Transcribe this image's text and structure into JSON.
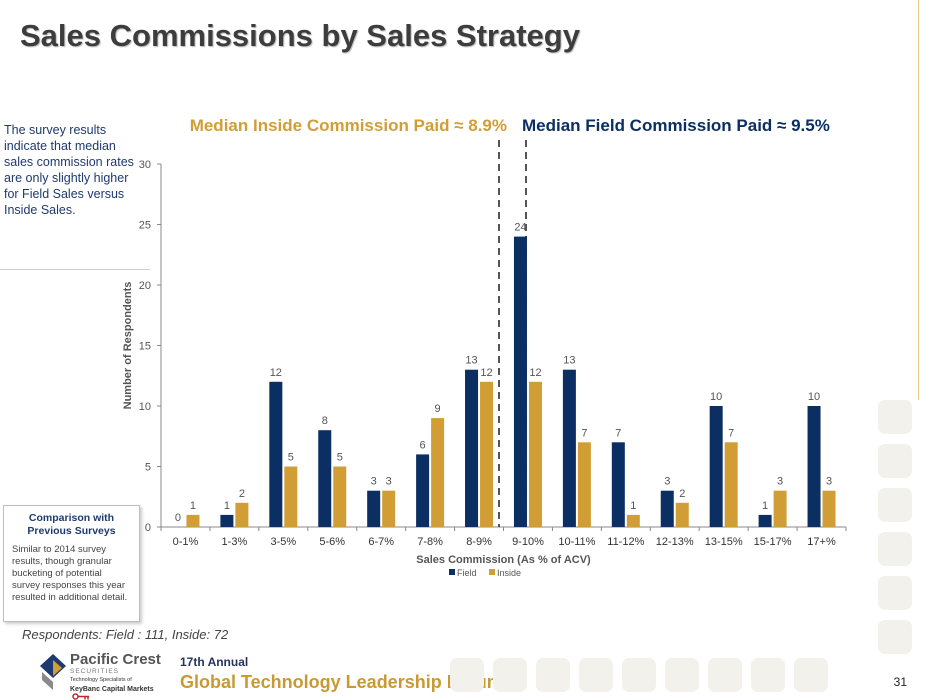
{
  "page": {
    "title": "Sales Commissions by Sales Strategy",
    "side_note": "The survey results indicate that median sales commission rates are only slightly higher for Field Sales versus Inside Sales.",
    "comparison_title": "Comparison with Previous Surveys",
    "comparison_body": "Similar to 2014 survey results, though granular bucketing of potential survey responses this year resulted in additional detail.",
    "respondents": "Respondents: Field : 111, Inside: 72",
    "logo_name": "Pacific Crest",
    "logo_sub": "SECURITIES",
    "logo_tag": "Technology Specialists of",
    "logo_key": "KeyBanc Capital Markets",
    "logo_icon": "pacific-crest-logo-icon",
    "key_icon": "key-icon",
    "forum_sub": "17th Annual",
    "forum_main": "Global Technology Leadership Forum",
    "page_number": "31"
  },
  "chart_data": {
    "type": "bar",
    "categories": [
      "0-1%",
      "1-3%",
      "3-5%",
      "5-6%",
      "6-7%",
      "7-8%",
      "8-9%",
      "9-10%",
      "10-11%",
      "11-12%",
      "12-13%",
      "13-15%",
      "15-17%",
      "17+%"
    ],
    "series": [
      {
        "name": "Field",
        "color": "#0b2f63",
        "values": [
          0,
          1,
          12,
          8,
          3,
          6,
          13,
          24,
          13,
          7,
          3,
          10,
          1,
          10
        ]
      },
      {
        "name": "Inside",
        "color": "#d19e35",
        "values": [
          1,
          2,
          5,
          5,
          3,
          9,
          12,
          12,
          7,
          1,
          2,
          7,
          3,
          3
        ]
      }
    ],
    "xlabel": "Sales Commission (As % of ACV)",
    "ylabel": "Number of Respondents",
    "ylim": [
      0,
      30
    ],
    "yticks": [
      0,
      5,
      10,
      15,
      20,
      25,
      30
    ],
    "grid": false,
    "legend": "bottom",
    "annotations": [
      {
        "text": "Median Inside Commission Paid ≈ 8.9%",
        "color": "#d19e35",
        "x": 8.9
      },
      {
        "text": "Median Field Commission Paid ≈ 9.5%",
        "color": "#0b2f63",
        "x": 9.5
      }
    ]
  }
}
